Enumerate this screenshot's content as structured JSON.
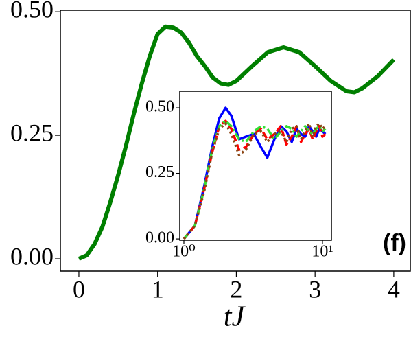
{
  "chart_data": [
    {
      "type": "line",
      "xlabel": "tJ",
      "annotation": "(f)",
      "x": [
        0,
        0.1,
        0.2,
        0.3,
        0.4,
        0.5,
        0.6,
        0.7,
        0.8,
        0.9,
        1.0,
        1.1,
        1.2,
        1.3,
        1.4,
        1.5,
        1.6,
        1.7,
        1.8,
        1.9,
        2.0,
        2.2,
        2.4,
        2.6,
        2.8,
        3.0,
        3.2,
        3.4,
        3.5,
        3.6,
        3.8,
        4.0
      ],
      "series": [
        {
          "color": "#007f00",
          "linestyle": "solid",
          "values": [
            0,
            0.007,
            0.03,
            0.065,
            0.115,
            0.17,
            0.23,
            0.295,
            0.355,
            0.41,
            0.455,
            0.47,
            0.468,
            0.458,
            0.437,
            0.41,
            0.39,
            0.367,
            0.355,
            0.352,
            0.36,
            0.39,
            0.418,
            0.428,
            0.418,
            0.39,
            0.36,
            0.339,
            0.337,
            0.345,
            0.37,
            0.403
          ]
        }
      ],
      "xlim": [
        -0.235,
        4.21
      ],
      "ylim": [
        -0.025,
        0.503
      ],
      "xticks": [
        0,
        1,
        2,
        3,
        4
      ],
      "yticks": [
        {
          "value": 0,
          "label": "0.00"
        },
        {
          "value": 0.25,
          "label": "0.25"
        },
        {
          "value": 0.5,
          "label": "0.50"
        }
      ]
    },
    {
      "type": "line",
      "xscale": "log",
      "x": [
        1,
        1.2,
        1.4,
        1.6,
        1.8,
        2,
        2.2,
        2.5,
        2.8,
        3.2,
        3.6,
        4,
        4.5,
        5,
        5.5,
        6,
        6.5,
        7,
        7.5,
        8,
        8.5,
        9,
        9.5,
        10,
        10.5
      ],
      "series": [
        {
          "color": "#0000ff",
          "linestyle": "solid",
          "values": [
            0,
            0.05,
            0.2,
            0.35,
            0.46,
            0.5,
            0.47,
            0.38,
            0.39,
            0.4,
            0.35,
            0.31,
            0.38,
            0.43,
            0.41,
            0.37,
            0.42,
            0.4,
            0.39,
            0.43,
            0.41,
            0.39,
            0.42,
            0.41,
            0.4
          ]
        },
        {
          "color": "#ff0000",
          "linestyle": "dashed",
          "values": [
            0,
            0.05,
            0.19,
            0.33,
            0.43,
            0.45,
            0.42,
            0.34,
            0.35,
            0.4,
            0.42,
            0.38,
            0.4,
            0.43,
            0.36,
            0.39,
            0.43,
            0.37,
            0.4,
            0.42,
            0.38,
            0.41,
            0.43,
            0.39,
            0.4
          ]
        },
        {
          "color": "#33dd33",
          "linestyle": "dashdot",
          "values": [
            0,
            0.05,
            0.19,
            0.34,
            0.43,
            0.45,
            0.43,
            0.38,
            0.37,
            0.41,
            0.43,
            0.42,
            0.38,
            0.41,
            0.43,
            0.42,
            0.39,
            0.41,
            0.43,
            0.41,
            0.4,
            0.42,
            0.43,
            0.41,
            0.42
          ]
        },
        {
          "color": "#8b4513",
          "linestyle": "dotted",
          "values": [
            0,
            0.05,
            0.18,
            0.33,
            0.42,
            0.44,
            0.4,
            0.32,
            0.34,
            0.4,
            0.41,
            0.37,
            0.4,
            0.41,
            0.37,
            0.42,
            0.43,
            0.38,
            0.41,
            0.44,
            0.39,
            0.43,
            0.44,
            0.42,
            0.43
          ]
        }
      ],
      "xlim": [
        0.934,
        11.6
      ],
      "ylim": [
        -0.005,
        0.563
      ],
      "xticks": [
        {
          "value": 1,
          "label": "10⁰"
        },
        {
          "value": 10,
          "label": "10¹"
        }
      ],
      "yticks": [
        {
          "value": 0,
          "label": "0.00"
        },
        {
          "value": 0.25,
          "label": "0.25"
        },
        {
          "value": 0.5,
          "label": "0.50"
        }
      ]
    }
  ]
}
